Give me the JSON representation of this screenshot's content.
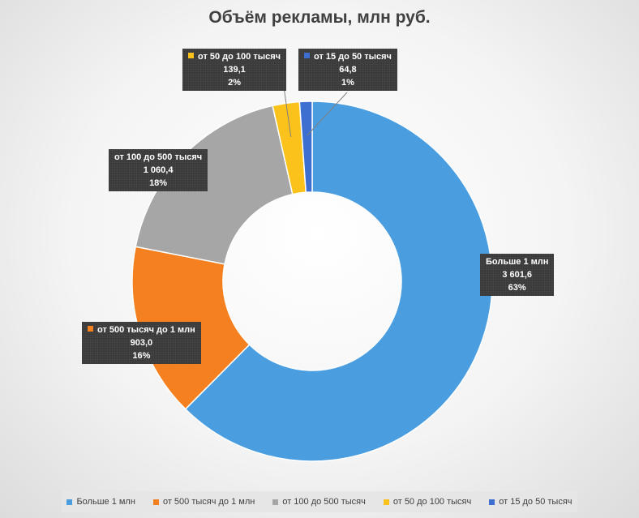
{
  "chart_data": {
    "type": "pie",
    "title": "Объём рекламы, млн руб.",
    "categories": [
      "Больше 1 млн",
      "от 500 тысяч до 1 млн",
      "от 100 до 500 тысяч",
      "от 50 до 100 тысяч",
      "от 15 до 50 тысяч"
    ],
    "values": [
      3601.6,
      903.0,
      1060.4,
      139.1,
      64.8
    ],
    "value_labels": [
      "3 601,6",
      "903,0",
      "1 060,4",
      "139,1",
      "64,8"
    ],
    "percent_labels": [
      "63%",
      "16%",
      "18%",
      "2%",
      "1%"
    ],
    "colors": [
      "#4a9ee0",
      "#f5801f",
      "#a6a6a6",
      "#fbc21c",
      "#3c6fcf"
    ],
    "donut": true,
    "legend_position": "bottom"
  }
}
